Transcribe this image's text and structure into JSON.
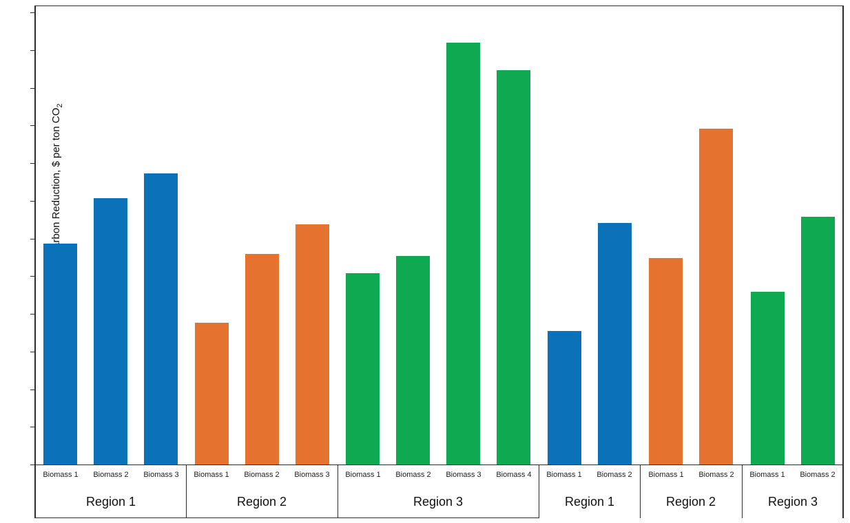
{
  "chart_data": {
    "type": "bar",
    "title": "",
    "xlabel": "",
    "ylabel": {
      "text": "Additional Cost of Carbon Reduction, $ per ton CO",
      "subscript": "2"
    },
    "y_axis": {
      "tick_count": 13,
      "tick_labels_shown": false,
      "numeric_labels": "none visible"
    },
    "value_units": "percent of full y-axis height (axis has tick marks but no numeric labels; values estimated from bar heights)",
    "legend": "none",
    "grid": "off",
    "groups": [
      {
        "region": "Region 1",
        "series_color": "#0b72b9",
        "bars": [
          {
            "label": "Biomass 1",
            "value": 48.1
          },
          {
            "label": "Biomass 2",
            "value": 58.0
          },
          {
            "label": "Biomass 3",
            "value": 63.4
          }
        ]
      },
      {
        "region": "Region 2",
        "series_color": "#e5722f",
        "bars": [
          {
            "label": "Biomass 1",
            "value": 30.9
          },
          {
            "label": "Biomass 2",
            "value": 45.9
          },
          {
            "label": "Biomass 3",
            "value": 52.3
          }
        ]
      },
      {
        "region": "Region 3",
        "series_color": "#0fa951",
        "bars": [
          {
            "label": "Biomass 1",
            "value": 41.7
          },
          {
            "label": "Biomass 2",
            "value": 45.4
          },
          {
            "label": "Biomass 3",
            "value": 91.9
          },
          {
            "label": "Biomass 4",
            "value": 85.9
          }
        ]
      },
      {
        "region": "Region 1",
        "series_color": "#0b72b9",
        "bars": [
          {
            "label": "Biomass 1",
            "value": 29.1
          },
          {
            "label": "Biomass 2",
            "value": 52.6
          }
        ]
      },
      {
        "region": "Region 2",
        "series_color": "#e5722f",
        "bars": [
          {
            "label": "Biomass 1",
            "value": 45.0
          },
          {
            "label": "Biomass 2",
            "value": 73.2
          }
        ]
      },
      {
        "region": "Region 3",
        "series_color": "#0fa951",
        "bars": [
          {
            "label": "Biomass 1",
            "value": 37.6
          },
          {
            "label": "Biomass 2",
            "value": 54.0
          }
        ]
      }
    ]
  },
  "colors": {
    "series_blue": "#0b72b9",
    "series_orange": "#e5722f",
    "series_green": "#0fa951",
    "axis": "#2b2b2b",
    "background": "#ffffff"
  }
}
